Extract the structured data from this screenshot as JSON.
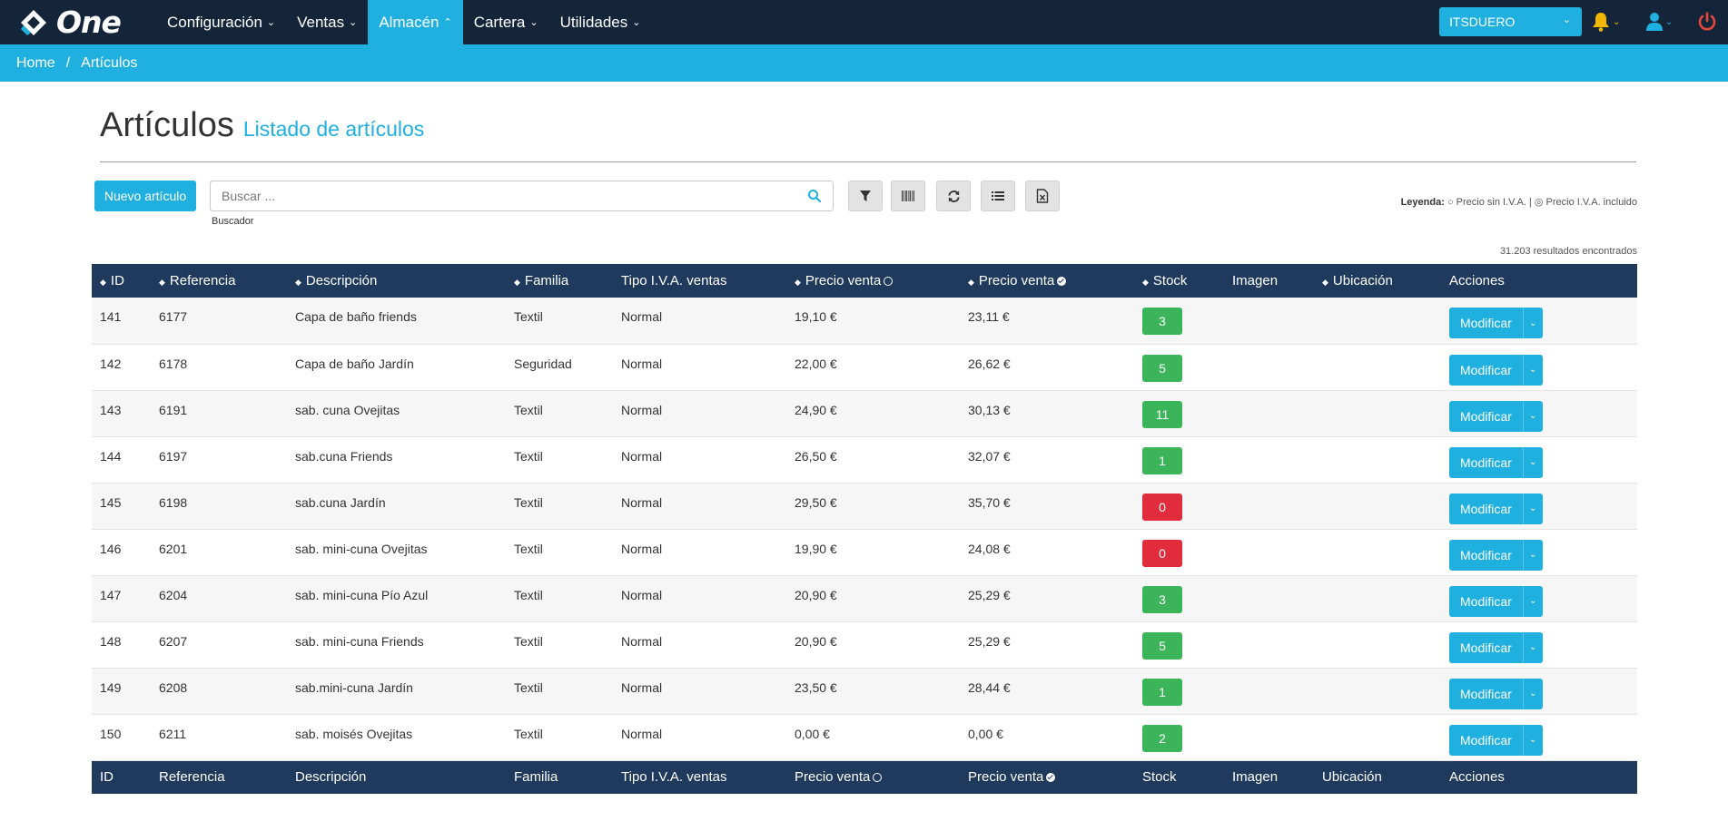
{
  "app": {
    "logo_text": "One"
  },
  "nav": {
    "items": [
      {
        "label": "Configuración",
        "active": false
      },
      {
        "label": "Ventas",
        "active": false
      },
      {
        "label": "Almacén",
        "active": true
      },
      {
        "label": "Cartera",
        "active": false
      },
      {
        "label": "Utilidades",
        "active": false
      }
    ],
    "company": "ITSDUERO"
  },
  "breadcrumb": {
    "home": "Home",
    "separator": "/",
    "current": "Artículos"
  },
  "page": {
    "title": "Artículos",
    "subtitle": "Listado de artículos"
  },
  "toolbar": {
    "new_label": "Nuevo artículo",
    "search_placeholder": "Buscar ...",
    "search_value": "",
    "search_caption": "Buscador",
    "legend_label": "Leyenda:",
    "legend_text": "○ Precio sin I.V.A. | ◎ Precio I.V.A. incluido",
    "results": "31.203 resultados encontrados"
  },
  "table": {
    "columns": {
      "id": "ID",
      "ref": "Referencia",
      "desc": "Descripción",
      "family": "Familia",
      "iva": "Tipo I.V.A. ventas",
      "price": "Precio venta",
      "price_iva": "Precio venta",
      "stock": "Stock",
      "image": "Imagen",
      "location": "Ubicación",
      "actions": "Acciones"
    },
    "action_label": "Modificar",
    "rows": [
      {
        "id": "141",
        "ref": "6177",
        "desc": "Capa de baño friends",
        "family": "Textil",
        "iva": "Normal",
        "price": "19,10 €",
        "price_iva": "23,11 €",
        "stock": "3",
        "stock_status": "ok"
      },
      {
        "id": "142",
        "ref": "6178",
        "desc": "Capa de baño Jardín",
        "family": "Seguridad",
        "iva": "Normal",
        "price": "22,00 €",
        "price_iva": "26,62 €",
        "stock": "5",
        "stock_status": "ok"
      },
      {
        "id": "143",
        "ref": "6191",
        "desc": "sab. cuna Ovejitas",
        "family": "Textil",
        "iva": "Normal",
        "price": "24,90 €",
        "price_iva": "30,13 €",
        "stock": "11",
        "stock_status": "ok"
      },
      {
        "id": "144",
        "ref": "6197",
        "desc": "sab.cuna Friends",
        "family": "Textil",
        "iva": "Normal",
        "price": "26,50 €",
        "price_iva": "32,07 €",
        "stock": "1",
        "stock_status": "ok"
      },
      {
        "id": "145",
        "ref": "6198",
        "desc": "sab.cuna Jardín",
        "family": "Textil",
        "iva": "Normal",
        "price": "29,50 €",
        "price_iva": "35,70 €",
        "stock": "0",
        "stock_status": "empty"
      },
      {
        "id": "146",
        "ref": "6201",
        "desc": "sab. mini-cuna Ovejitas",
        "family": "Textil",
        "iva": "Normal",
        "price": "19,90 €",
        "price_iva": "24,08 €",
        "stock": "0",
        "stock_status": "empty"
      },
      {
        "id": "147",
        "ref": "6204",
        "desc": "sab. mini-cuna Pío Azul",
        "family": "Textil",
        "iva": "Normal",
        "price": "20,90 €",
        "price_iva": "25,29 €",
        "stock": "3",
        "stock_status": "ok"
      },
      {
        "id": "148",
        "ref": "6207",
        "desc": "sab. mini-cuna Friends",
        "family": "Textil",
        "iva": "Normal",
        "price": "20,90 €",
        "price_iva": "25,29 €",
        "stock": "5",
        "stock_status": "ok"
      },
      {
        "id": "149",
        "ref": "6208",
        "desc": "sab.mini-cuna Jardín",
        "family": "Textil",
        "iva": "Normal",
        "price": "23,50 €",
        "price_iva": "28,44 €",
        "stock": "1",
        "stock_status": "ok"
      },
      {
        "id": "150",
        "ref": "6211",
        "desc": "sab. moisés Ovejitas",
        "family": "Textil",
        "iva": "Normal",
        "price": "0,00 €",
        "price_iva": "0,00 €",
        "stock": "2",
        "stock_status": "ok"
      }
    ]
  },
  "colors": {
    "topbar": "#14253a",
    "accent": "#1fb0e0",
    "table_header": "#1f3a5c",
    "stock_ok": "#3cb55a",
    "stock_empty": "#e12c3c",
    "bell": "#f2b705",
    "power": "#e4473c"
  }
}
